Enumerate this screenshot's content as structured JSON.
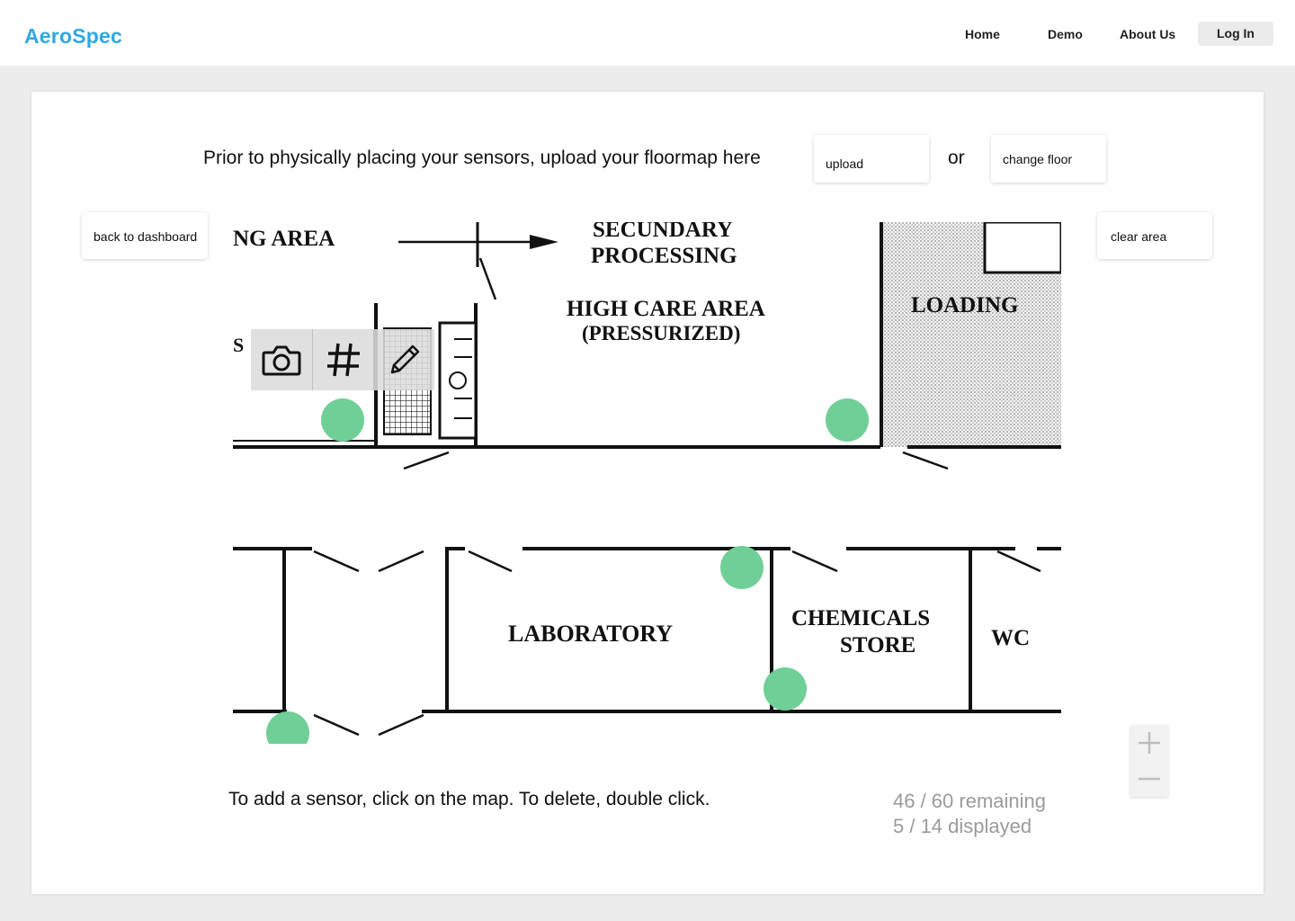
{
  "nav": {
    "brand": "AeroSpec",
    "links": [
      "Home",
      "Demo",
      "About Us"
    ],
    "login": "Log In"
  },
  "upload_bar": {
    "prompt": "Prior to physically placing your sensors, upload your floormap here",
    "upload_label": "upload",
    "or_label": "or",
    "change_floor_label": "change floor"
  },
  "buttons": {
    "back": "back to dashboard",
    "clear": "clear area"
  },
  "floorplan": {
    "rooms": [
      "NG  AREA",
      "SECUNDARY",
      "PROCESSING",
      "HIGH  CARE  AREA",
      "(PRESSURIZED)",
      "LOADING",
      "S",
      "LABORATORY",
      "CHEMICALS",
      "STORE",
      "WC"
    ]
  },
  "sensor_color": "#6fcf97",
  "sensor_count_shown": 5,
  "toolbar": {
    "icons": [
      "camera-icon",
      "hash-icon",
      "pencil-icon"
    ]
  },
  "instructions": "To add a sensor, click on the map. To delete, double click.",
  "stats": {
    "remaining": "46 / 60  remaining",
    "displayed": "5 / 14 displayed"
  },
  "zoom": {
    "in_icon": "plus-icon",
    "out_icon": "minus-icon"
  }
}
